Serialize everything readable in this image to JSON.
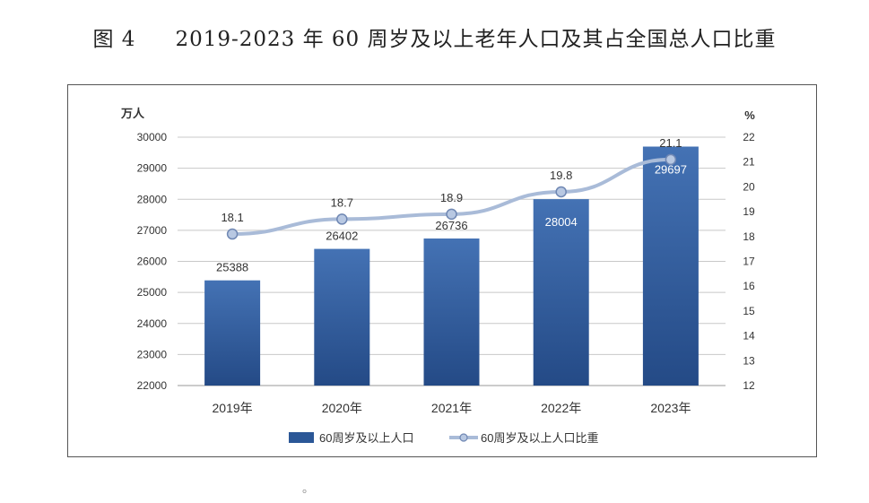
{
  "figure": {
    "number": "图 4",
    "title": "2019-2023 年 60 周岁及以上老年人口及其占全国总人口比重"
  },
  "footer_note": "。",
  "chart_data": {
    "type": "bar",
    "categories": [
      "2019年",
      "2020年",
      "2021年",
      "2022年",
      "2023年"
    ],
    "series": [
      {
        "name": "60周岁及以上人口",
        "kind": "bar",
        "axis": "left",
        "values": [
          25388,
          26402,
          26736,
          28004,
          29697
        ],
        "value_labels": [
          "25388",
          "26402",
          "26736",
          "28004",
          "29697"
        ],
        "color": "#2b5797"
      },
      {
        "name": "60周岁及以上人口比重",
        "kind": "line",
        "axis": "right",
        "values": [
          18.1,
          18.7,
          18.9,
          19.8,
          21.1
        ],
        "value_labels": [
          "18.1",
          "18.7",
          "18.9",
          "19.8",
          "21.1"
        ],
        "color": "#a9bbd8"
      }
    ],
    "y_left": {
      "unit": "万人",
      "ylim": [
        22000,
        30000
      ],
      "ticks": [
        "22000",
        "23000",
        "24000",
        "25000",
        "26000",
        "27000",
        "28000",
        "29000",
        "30000"
      ]
    },
    "y_right": {
      "unit": "%",
      "ylim": [
        12,
        22
      ],
      "ticks": [
        "12",
        "13",
        "14",
        "15",
        "16",
        "17",
        "18",
        "19",
        "20",
        "21",
        "22"
      ]
    },
    "grid": true,
    "legend_position": "bottom",
    "colors": {
      "bar": "#2b5797",
      "bar_light": "#4472b4",
      "line": "#a9bbd8",
      "marker_fill": "#b8c8e2",
      "marker_stroke": "#6f87b3",
      "grid": "#c8c8c8",
      "text": "#333333"
    }
  }
}
